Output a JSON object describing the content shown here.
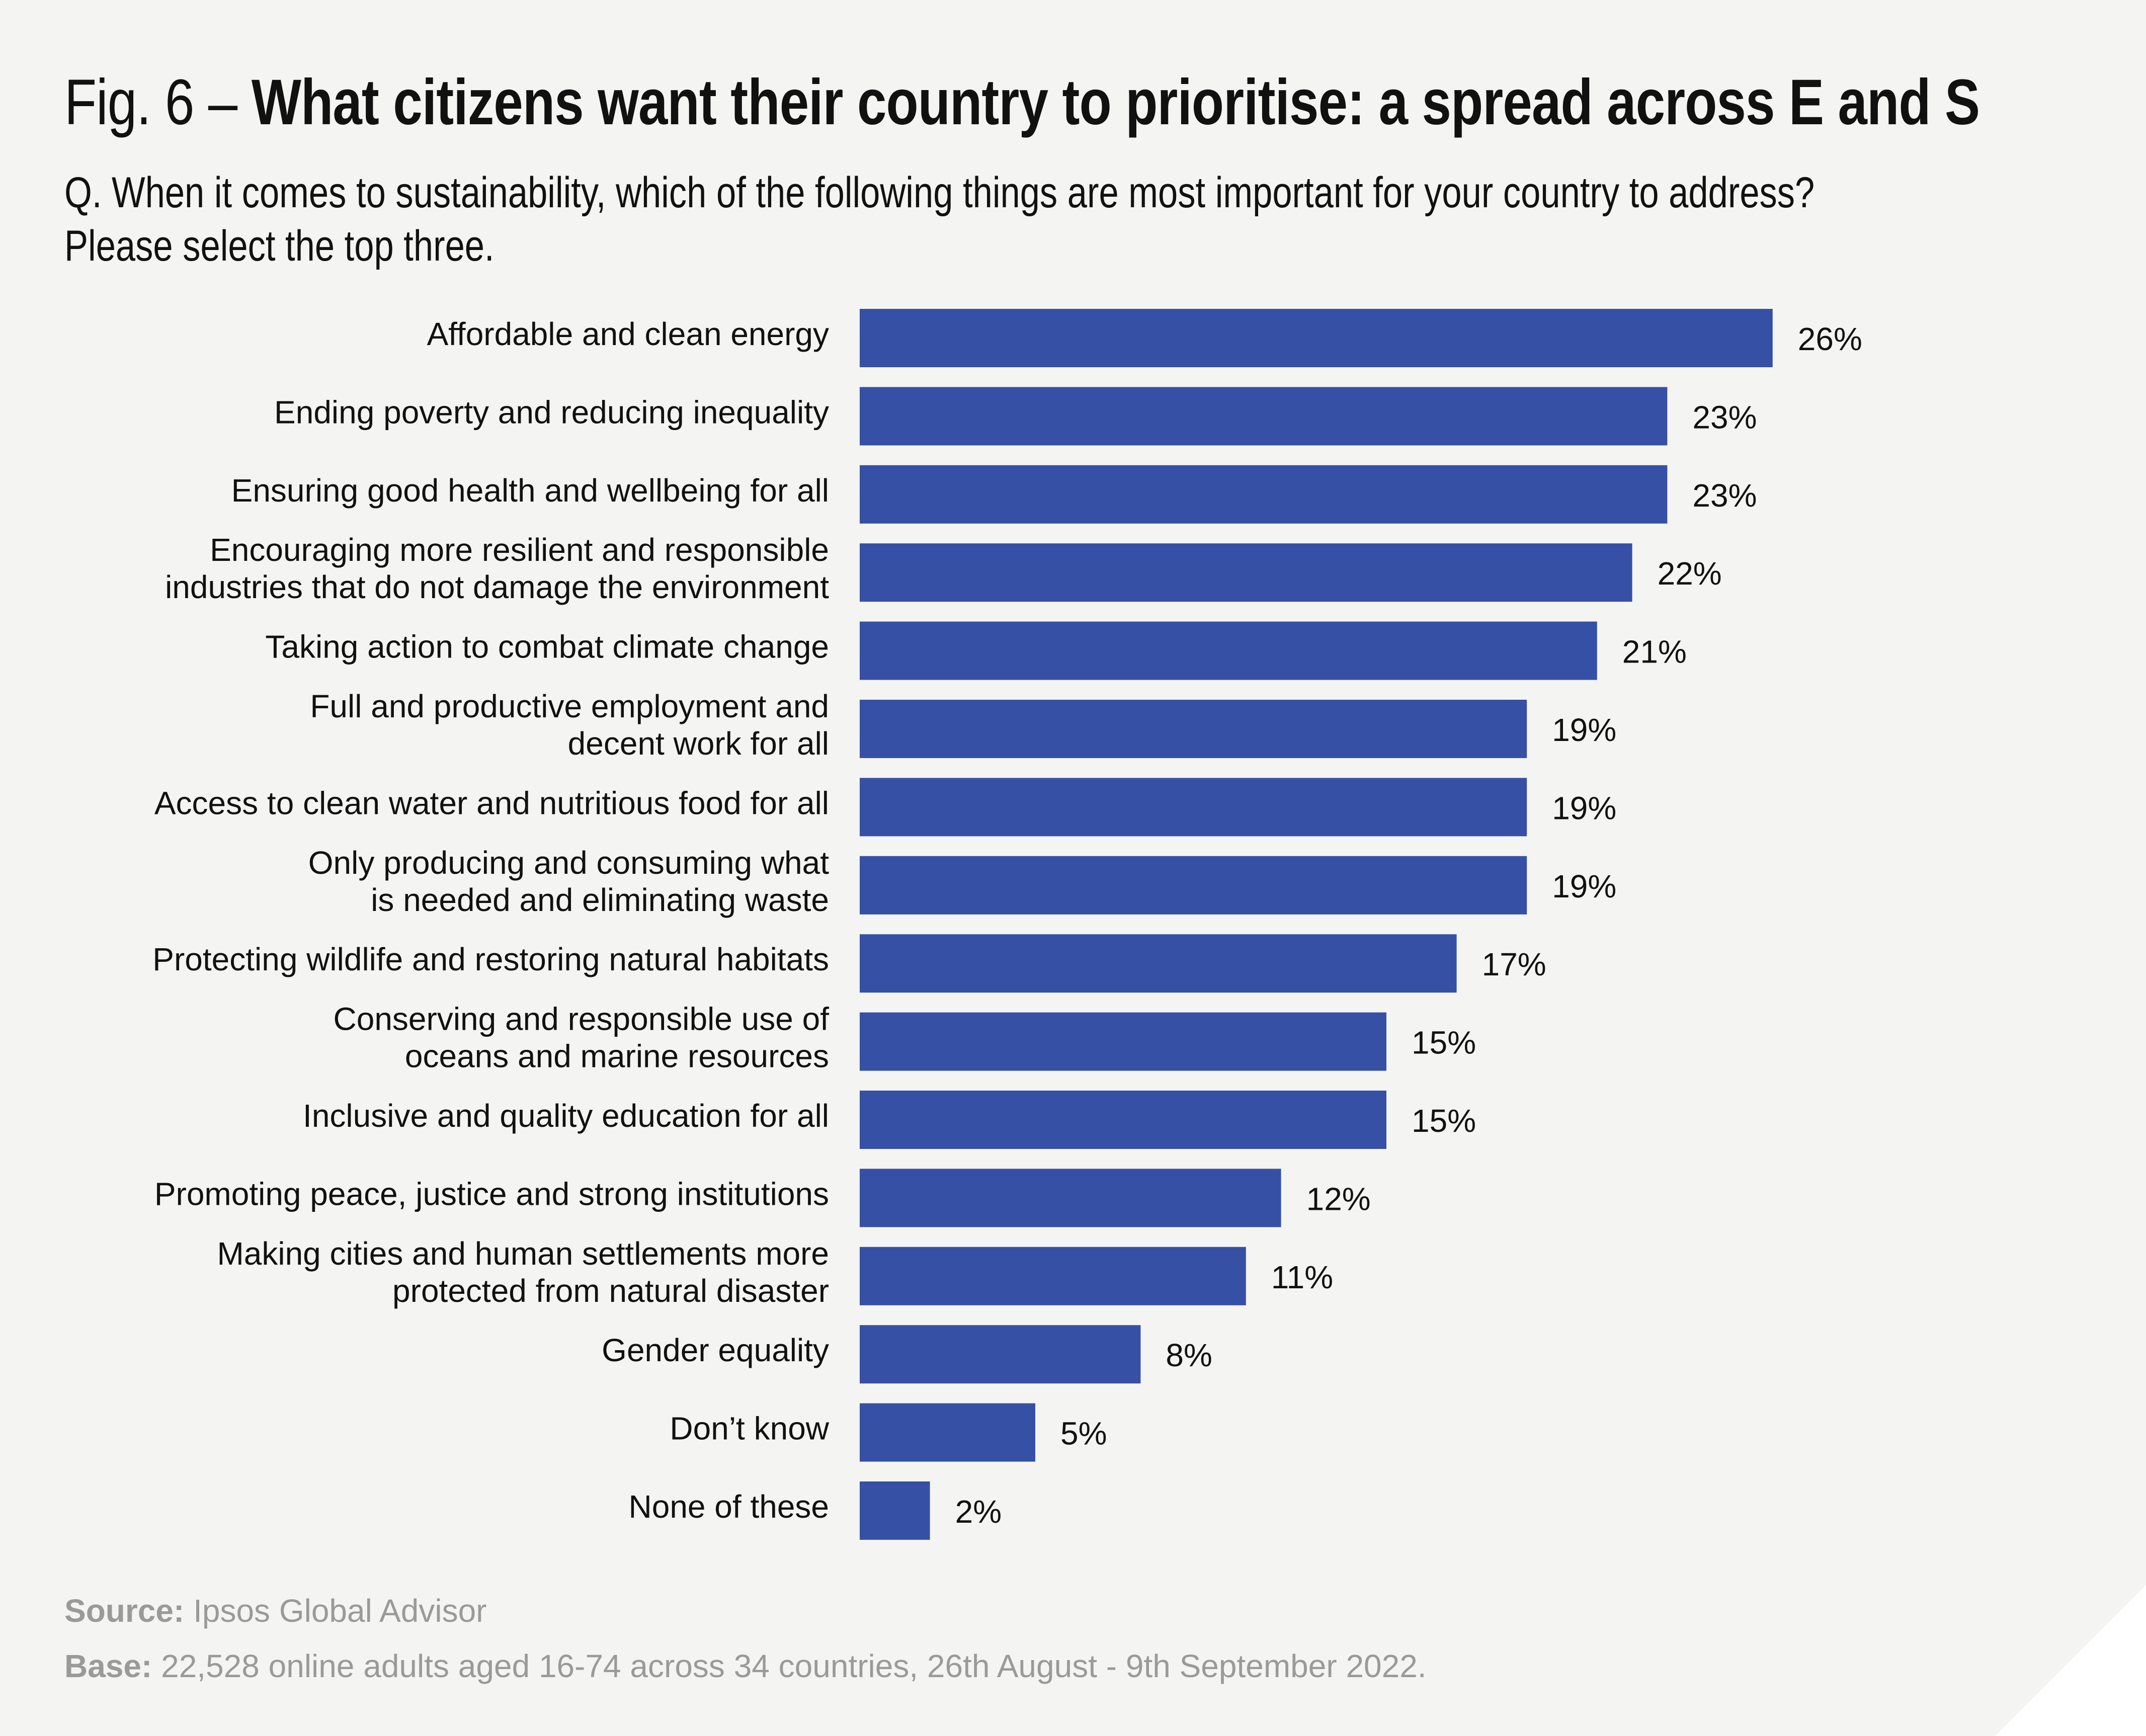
{
  "header": {
    "fig_prefix": "Fig. 6 – ",
    "title": "What citizens want their country to prioritise: a spread across E and S",
    "question_line1": "Q. When it comes to sustainability, which of the following things are most important for your country to address?",
    "question_line2": "Please select the top three."
  },
  "footer": {
    "source_label": "Source:",
    "source_text": " Ipsos Global Advisor",
    "base_label": "Base:",
    "base_text": " 22,528 online adults aged 16-74 across 34 countries, 26th August - 9th September 2022."
  },
  "colors": {
    "bar": "#3650a5",
    "background": "#f4f4f2"
  },
  "chart_data": {
    "type": "bar",
    "orientation": "horizontal",
    "title": "What citizens want their country to prioritise: a spread across E and S",
    "xlabel": "",
    "ylabel": "",
    "xlim": [
      0,
      26
    ],
    "grid": false,
    "legend": "none",
    "value_suffix": "%",
    "categories": [
      [
        "Affordable and clean energy"
      ],
      [
        "Ending poverty and reducing inequality"
      ],
      [
        "Ensuring good health and wellbeing for all"
      ],
      [
        "Encouraging more resilient and responsible",
        "industries that do not damage the environment"
      ],
      [
        "Taking action to combat climate change"
      ],
      [
        "Full and productive employment and",
        "decent work for all"
      ],
      [
        "Access to clean water and nutritious food for all"
      ],
      [
        "Only producing and consuming what",
        "is needed and eliminating waste"
      ],
      [
        "Protecting wildlife and restoring natural habitats"
      ],
      [
        "Conserving and responsible use of",
        "oceans and marine resources"
      ],
      [
        "Inclusive and quality education for all"
      ],
      [
        "Promoting peace, justice and strong institutions"
      ],
      [
        "Making cities and human settlements more",
        "protected from natural disaster"
      ],
      [
        "Gender equality"
      ],
      [
        "Don’t know"
      ],
      [
        "None of these"
      ]
    ],
    "values": [
      26,
      23,
      23,
      22,
      21,
      19,
      19,
      19,
      17,
      15,
      15,
      12,
      11,
      8,
      5,
      2
    ]
  }
}
